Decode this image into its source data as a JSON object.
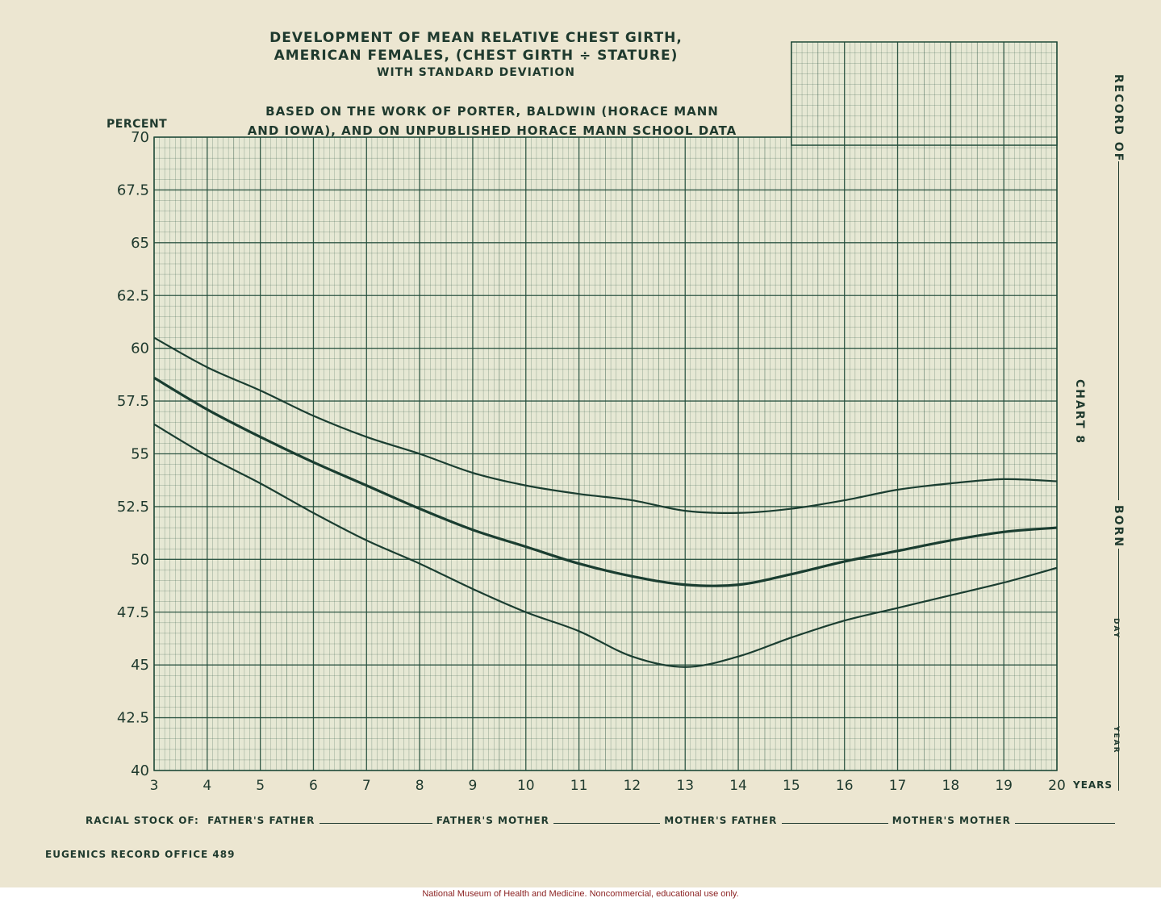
{
  "title": {
    "line1": "DEVELOPMENT OF MEAN RELATIVE CHEST GIRTH,",
    "line2": "AMERICAN FEMALES, (CHEST GIRTH ÷ STATURE)",
    "line3": "WITH STANDARD DEVIATION"
  },
  "basis": {
    "line1": "BASED ON THE WORK OF PORTER, BALDWIN (HORACE MANN",
    "line2": "AND IOWA), AND ON UNPUBLISHED HORACE MANN SCHOOL DATA"
  },
  "side": {
    "record_of": "RECORD OF",
    "chart_no": "CHART 8",
    "born": "BORN",
    "day": "DAY",
    "year": "YEAR"
  },
  "racial": {
    "prefix": "RACIAL STOCK OF:",
    "fathers_father": "FATHER'S FATHER",
    "fathers_mother": "FATHER'S MOTHER",
    "mothers_father": "MOTHER'S FATHER",
    "mothers_mother": "MOTHER'S MOTHER"
  },
  "office": "EUGENICS RECORD OFFICE 489",
  "credit": "National Museum of Health and Medicine. Noncommercial, educational use only.",
  "chart_data": {
    "type": "line",
    "ylabel": "PERCENT",
    "xlabel": "YEARS",
    "xlim": [
      3,
      20
    ],
    "ylim": [
      40,
      70
    ],
    "xticks": [
      "3",
      "4",
      "5",
      "6",
      "7",
      "8",
      "9",
      "10",
      "11",
      "12",
      "13",
      "14",
      "15",
      "16",
      "17",
      "18",
      "19",
      "20"
    ],
    "yticks": [
      "70",
      "67.5",
      "65",
      "62.5",
      "60",
      "57.5",
      "55",
      "52.5",
      "50",
      "47.5",
      "45",
      "42.5",
      "40"
    ],
    "grid": true,
    "x": [
      3,
      4,
      5,
      6,
      7,
      8,
      9,
      10,
      11,
      12,
      13,
      14,
      15,
      16,
      17,
      18,
      19,
      20
    ],
    "series": [
      {
        "values": [
          60.5,
          59.1,
          58.0,
          56.8,
          55.8,
          55.0,
          54.1,
          53.5,
          53.1,
          52.8,
          52.3,
          52.2,
          52.4,
          52.8,
          53.3,
          53.6,
          53.8,
          53.7
        ]
      },
      {
        "values": [
          58.6,
          57.1,
          55.8,
          54.6,
          53.5,
          52.4,
          51.4,
          50.6,
          49.8,
          49.2,
          48.8,
          48.8,
          49.3,
          49.9,
          50.4,
          50.9,
          51.3,
          51.5
        ]
      },
      {
        "values": [
          56.4,
          54.9,
          53.6,
          52.2,
          50.9,
          49.8,
          48.6,
          47.5,
          46.6,
          45.4,
          44.9,
          45.4,
          46.3,
          47.1,
          47.7,
          48.3,
          48.9,
          49.6
        ]
      }
    ]
  }
}
